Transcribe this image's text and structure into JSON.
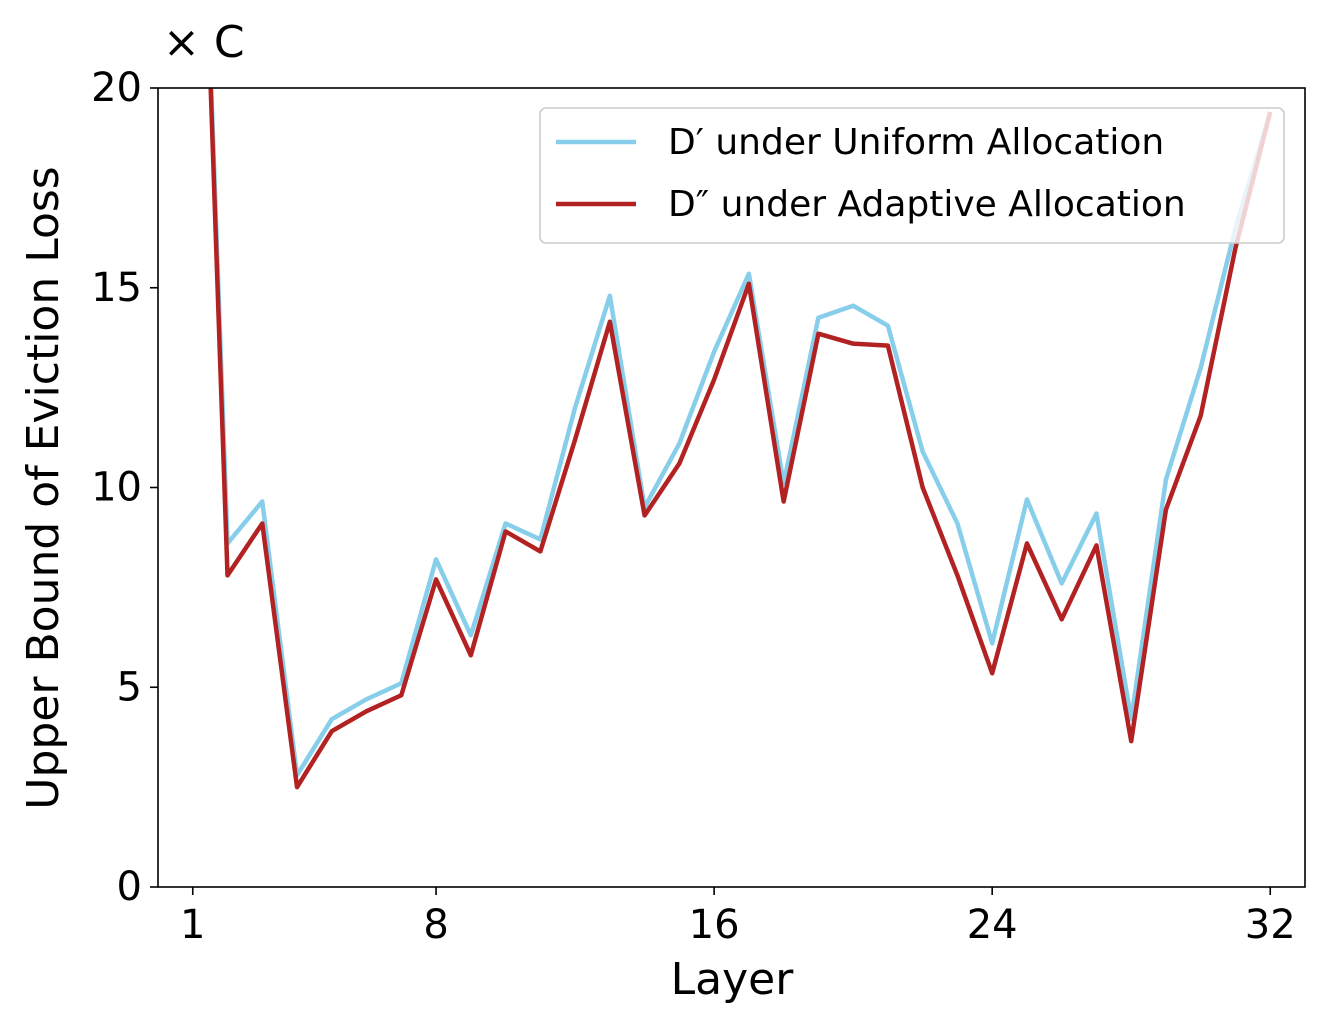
{
  "chart_data": {
    "type": "line",
    "annotation": "× C",
    "x_label": "Layer",
    "y_label": "Upper Bound of Eviction Loss",
    "x": [
      1,
      2,
      3,
      4,
      5,
      6,
      7,
      8,
      9,
      10,
      11,
      12,
      13,
      14,
      15,
      16,
      17,
      18,
      19,
      20,
      21,
      22,
      23,
      24,
      25,
      26,
      27,
      28,
      29,
      30,
      31,
      32
    ],
    "series": [
      {
        "name": "D′ under Uniform Allocation",
        "color": "#87ceeb",
        "values": [
          33,
          8.6,
          9.65,
          2.8,
          4.2,
          4.7,
          5.1,
          8.2,
          6.3,
          9.1,
          8.7,
          12.0,
          14.8,
          9.5,
          11.1,
          13.4,
          15.35,
          10.1,
          14.25,
          14.55,
          14.05,
          10.9,
          9.1,
          6.1,
          9.7,
          7.6,
          9.35,
          4.2,
          10.2,
          13.0,
          16.5,
          19.4
        ]
      },
      {
        "name": "D″ under Adaptive Allocation",
        "color": "#b22222",
        "values": [
          33,
          7.8,
          9.1,
          2.5,
          3.9,
          4.4,
          4.8,
          7.7,
          5.8,
          8.9,
          8.4,
          11.2,
          14.15,
          9.3,
          10.6,
          12.7,
          15.1,
          9.65,
          13.85,
          13.6,
          13.55,
          10.0,
          7.8,
          5.35,
          8.6,
          6.7,
          8.55,
          3.65,
          9.45,
          11.8,
          16.0,
          19.4
        ]
      }
    ],
    "xlim": [
      0,
      33
    ],
    "xticks": [
      1,
      8,
      16,
      24,
      32
    ],
    "ylim": [
      0,
      20
    ],
    "yticks": [
      0,
      5,
      10,
      15,
      20
    ],
    "grid": false,
    "legend": "upper right"
  }
}
